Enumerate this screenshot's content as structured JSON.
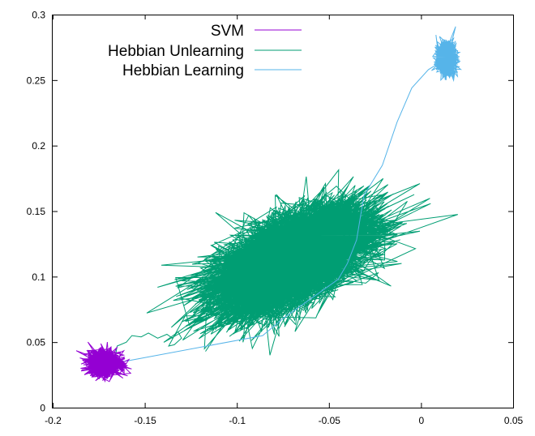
{
  "chart_data": {
    "type": "line",
    "title": "",
    "xlabel": "",
    "ylabel": "",
    "xlim": [
      -0.2,
      0.05
    ],
    "ylim": [
      0,
      0.3
    ],
    "x_ticks": [
      -0.2,
      -0.15,
      -0.1,
      -0.05,
      0,
      0.05
    ],
    "x_tick_labels": [
      "-0.2",
      "-0.15",
      "-0.1",
      "-0.05",
      "0",
      "0.05"
    ],
    "y_ticks": [
      0,
      0.05,
      0.1,
      0.15,
      0.2,
      0.25,
      0.3
    ],
    "y_tick_labels": [
      "0",
      "0.05",
      "0.1",
      "0.15",
      "0.2",
      "0.25",
      "0.3"
    ],
    "grid": false,
    "legend_position": "top-left",
    "series": [
      {
        "name": "SVM",
        "color": "#9400d3",
        "path": [
          [
            -0.162,
            0.037
          ],
          [
            -0.166,
            0.034
          ],
          [
            -0.17,
            0.035
          ]
        ],
        "cluster": {
          "center": [
            -0.172,
            0.034
          ],
          "spread": [
            0.0045,
            0.0045
          ],
          "count": 1500
        }
      },
      {
        "name": "Hebbian Unlearning",
        "color": "#009e73",
        "path": [
          [
            -0.166,
            0.039
          ],
          [
            -0.165,
            0.047
          ],
          [
            -0.16,
            0.05
          ],
          [
            -0.157,
            0.055
          ],
          [
            -0.152,
            0.054
          ],
          [
            -0.148,
            0.057
          ],
          [
            -0.143,
            0.053
          ],
          [
            -0.138,
            0.056
          ],
          [
            -0.135,
            0.053
          ],
          [
            -0.132,
            0.058
          ],
          [
            -0.13,
            0.053
          ],
          [
            -0.134,
            0.048
          ],
          [
            -0.137,
            0.047
          ],
          [
            -0.132,
            0.06
          ],
          [
            -0.128,
            0.07
          ],
          [
            -0.12,
            0.07
          ],
          [
            -0.118,
            0.078
          ],
          [
            -0.11,
            0.08
          ],
          [
            -0.105,
            0.081
          ],
          [
            -0.1,
            0.084
          ],
          [
            -0.095,
            0.088
          ],
          [
            -0.09,
            0.092
          ]
        ],
        "exit_path": [
          [
            -0.05,
            0.095
          ],
          [
            -0.04,
            0.097
          ],
          [
            -0.03,
            0.095
          ],
          [
            -0.023,
            0.103
          ],
          [
            -0.045,
            0.092
          ],
          [
            -0.057,
            0.085
          ],
          [
            -0.045,
            0.09
          ]
        ],
        "extra_path": [
          [
            -0.04,
            0.13
          ],
          [
            -0.028,
            0.147
          ],
          [
            -0.045,
            0.128
          ],
          [
            -0.028,
            0.126
          ],
          [
            -0.014,
            0.127
          ],
          [
            -0.022,
            0.116
          ],
          [
            -0.035,
            0.12
          ]
        ],
        "cluster": {
          "center": [
            -0.07,
            0.113
          ],
          "spread": [
            0.021,
            0.0165
          ],
          "count": 5500
        }
      },
      {
        "name": "Hebbian Learning",
        "color": "#56b4e9",
        "path": [
          [
            -0.17,
            0.03
          ],
          [
            -0.162,
            0.035
          ],
          [
            -0.086,
            0.055
          ],
          [
            -0.075,
            0.068
          ],
          [
            -0.06,
            0.083
          ],
          [
            -0.045,
            0.098
          ],
          [
            -0.04,
            0.11
          ],
          [
            -0.035,
            0.128
          ],
          [
            -0.031,
            0.162
          ],
          [
            -0.021,
            0.185
          ],
          [
            -0.013,
            0.218
          ],
          [
            -0.005,
            0.244
          ],
          [
            0.004,
            0.258
          ],
          [
            0.011,
            0.264
          ]
        ],
        "cluster": {
          "center": [
            0.014,
            0.266
          ],
          "spread": [
            0.0025,
            0.0058
          ],
          "count": 1400
        }
      }
    ]
  }
}
